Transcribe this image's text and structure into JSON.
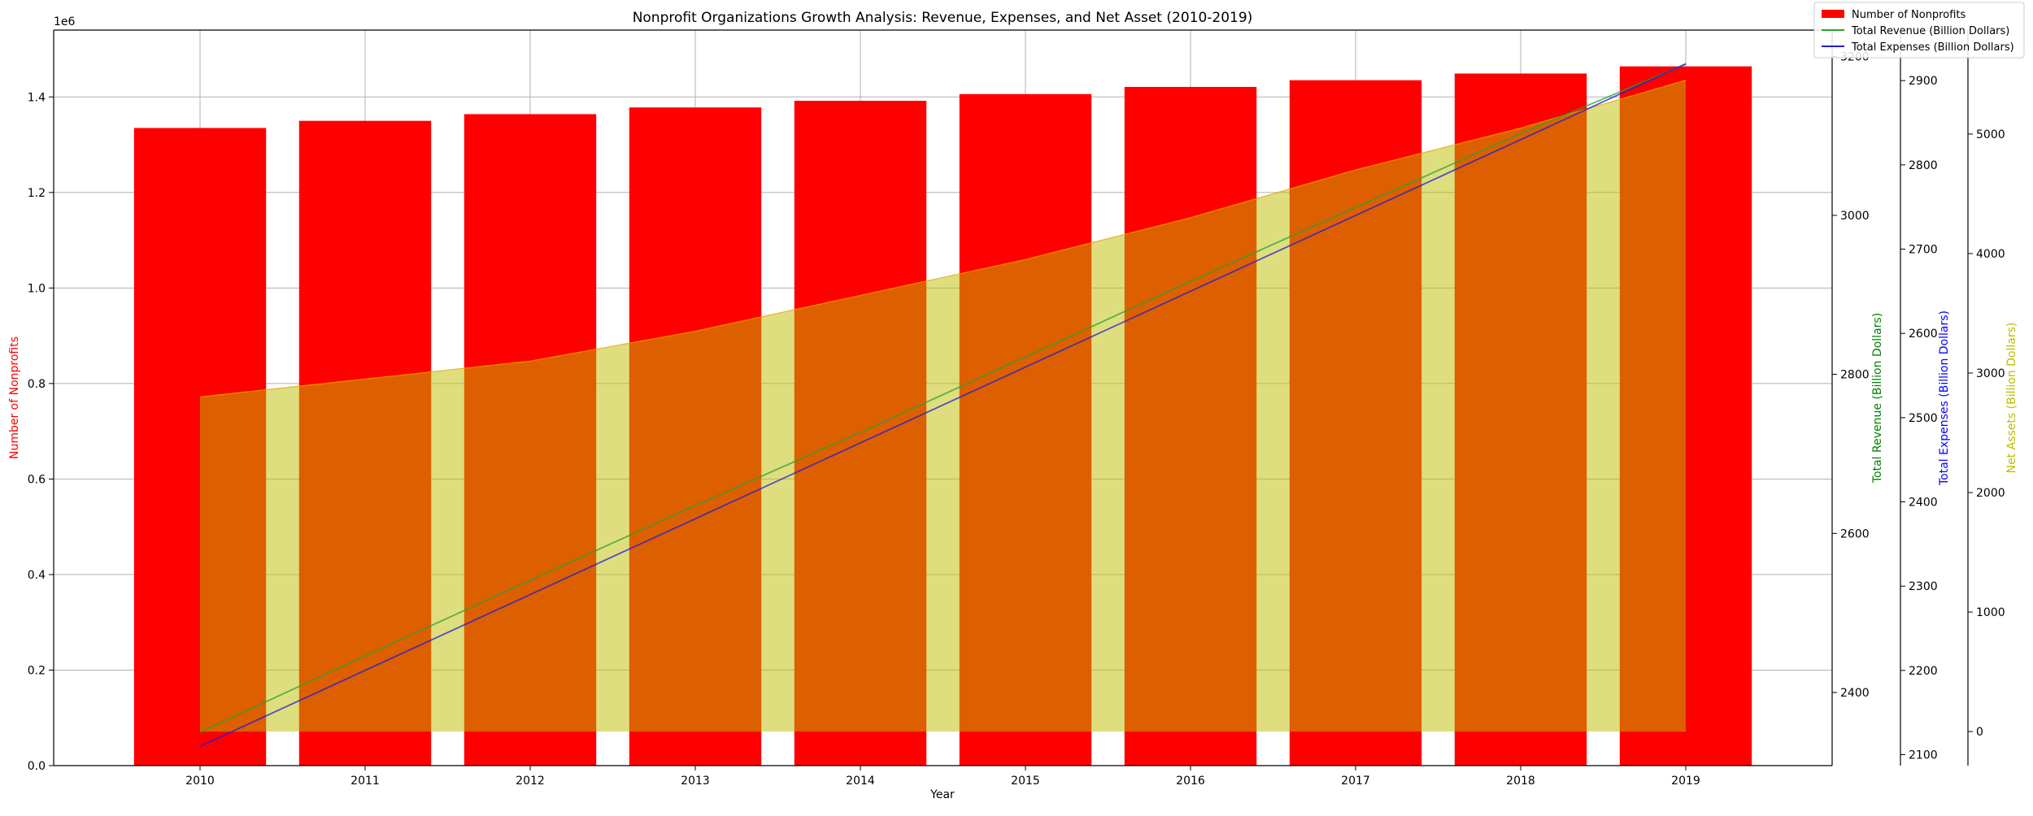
{
  "chart_data": {
    "type": "bar",
    "title": "Nonprofit Organizations Growth Analysis: Revenue, Expenses, and Net Asset (2010-2019)",
    "xlabel": "Year",
    "categories": [
      "2010",
      "2011",
      "2012",
      "2013",
      "2014",
      "2015",
      "2016",
      "2017",
      "2018",
      "2019"
    ],
    "grid": true,
    "legend_position": "top-right",
    "axes": {
      "left": {
        "label": "Number of Nonprofits",
        "color": "#ff0000",
        "offset_text": "1e6",
        "ylim": [
          0,
          1.54
        ],
        "ticks": [
          0.0,
          0.2,
          0.4,
          0.6,
          0.8,
          1.0,
          1.2,
          1.4
        ],
        "tick_labels": [
          "0.0",
          "0.2",
          "0.4",
          "0.6",
          "0.8",
          "1.0",
          "1.2",
          "1.4"
        ]
      },
      "revenue": {
        "label": "Total Revenue (Billion Dollars)",
        "color": "#008000",
        "ylim": [
          2308,
          3233
        ],
        "ticks": [
          2400,
          2600,
          2800,
          3000,
          3200
        ],
        "tick_labels": [
          "2400",
          "2600",
          "2800",
          "3000",
          "3200"
        ]
      },
      "expenses": {
        "label": "Total Expenses (Billion Dollars)",
        "color": "#0000ff",
        "ylim": [
          2087,
          2960
        ],
        "ticks": [
          2100,
          2200,
          2300,
          2400,
          2500,
          2600,
          2700,
          2800,
          2900
        ],
        "tick_labels": [
          "2100",
          "2200",
          "2300",
          "2400",
          "2500",
          "2600",
          "2700",
          "2800",
          "2900"
        ]
      },
      "net_assets": {
        "label": "Net Assets (Billion Dollars)",
        "color": "#bdbd00",
        "ylim": [
          -285,
          5870
        ],
        "ticks": [
          0,
          1000,
          2000,
          3000,
          4000,
          5000
        ],
        "tick_labels": [
          "0",
          "1000",
          "2000",
          "3000",
          "4000",
          "5000"
        ]
      }
    },
    "series": [
      {
        "name": "Number of Nonprofits",
        "kind": "bar",
        "axis": "left",
        "color": "#ff0000",
        "values": [
          1.335,
          1.35,
          1.364,
          1.378,
          1.392,
          1.406,
          1.421,
          1.435,
          1.449,
          1.464
        ]
      },
      {
        "name": "Total Revenue (Billion Dollars)",
        "kind": "line",
        "axis": "revenue",
        "color": "#2ca02c",
        "values": [
          2350,
          2446,
          2541,
          2635,
          2727,
          2822,
          2917,
          3010,
          3103,
          3190
        ]
      },
      {
        "name": "Total Expenses (Billion Dollars)",
        "kind": "line",
        "axis": "expenses",
        "color": "#1f1fd0",
        "values": [
          2110,
          2200,
          2290,
          2380,
          2470,
          2560,
          2650,
          2740,
          2830,
          2920
        ]
      },
      {
        "kind": "area",
        "axis": "net_assets",
        "color": "#bdbd00",
        "opacity": 0.5,
        "values": [
          2800,
          2950,
          3100,
          3350,
          3650,
          3950,
          4300,
          4700,
          5050,
          5450
        ]
      }
    ]
  }
}
